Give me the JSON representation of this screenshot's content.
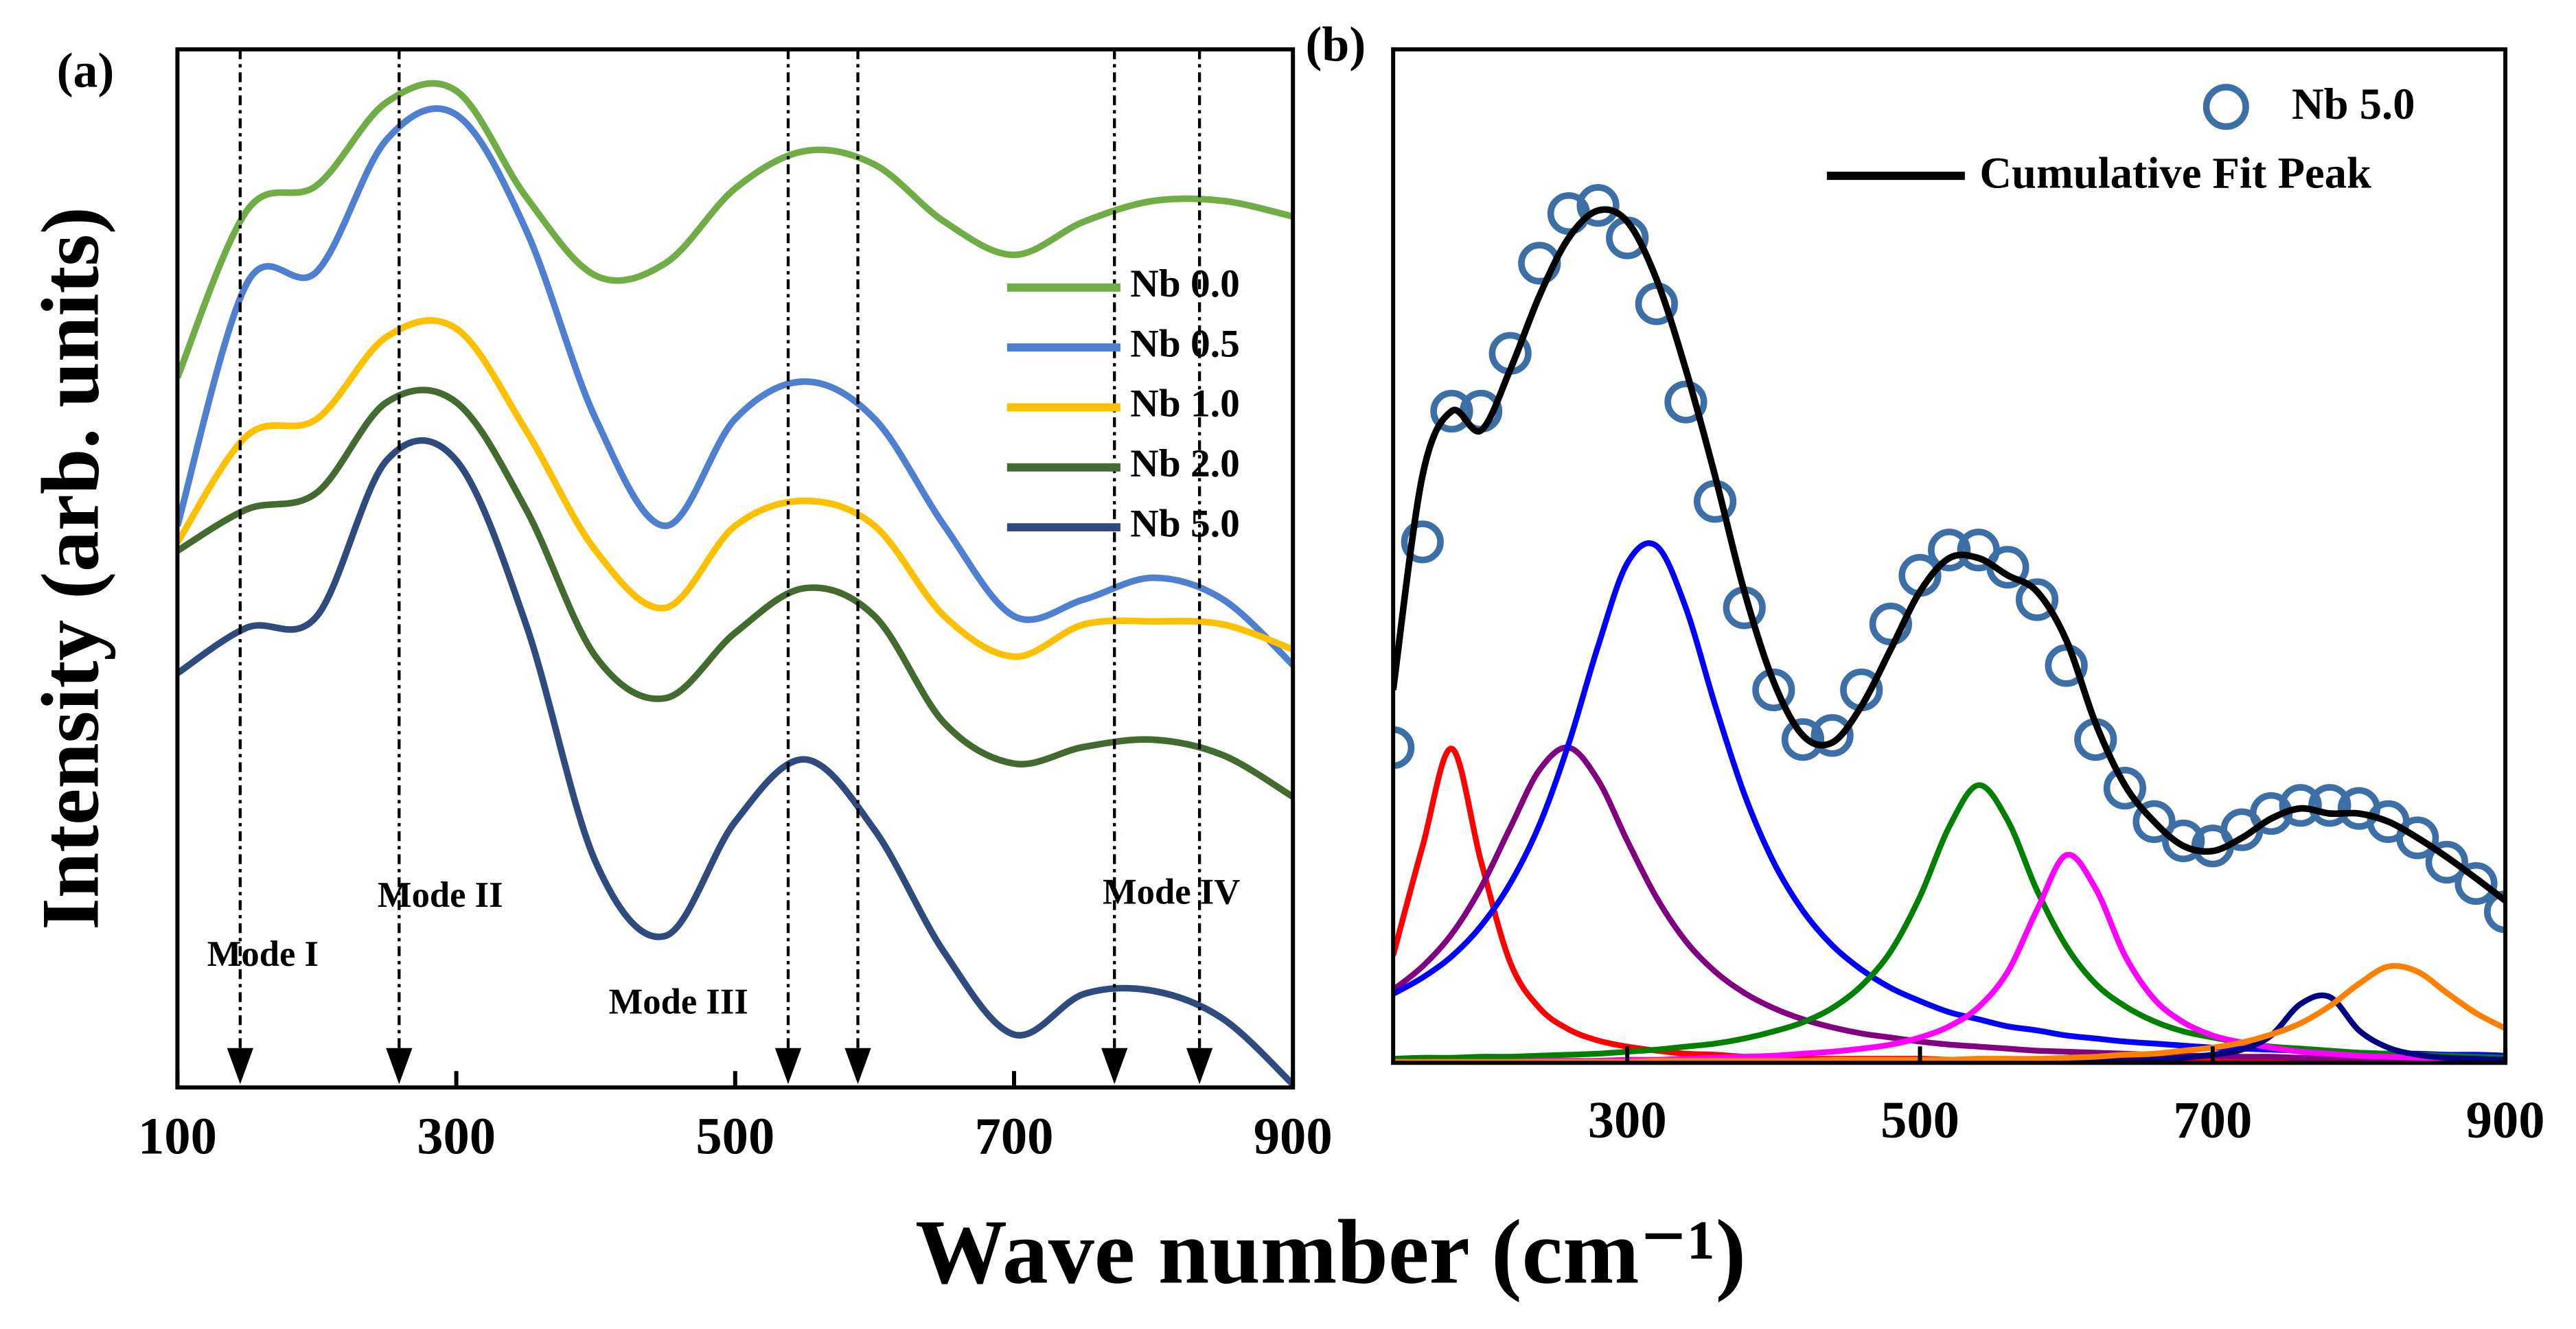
{
  "chart_data": [
    {
      "type": "line",
      "label": "(a)",
      "xlabel": "Wave number (cm⁻¹)",
      "ylabel": "Intensity (arb. units)",
      "x": [
        100,
        150,
        200,
        250,
        300,
        350,
        400,
        450,
        500,
        550,
        600,
        650,
        700,
        750,
        800,
        850,
        900
      ],
      "xlim": [
        100,
        900
      ],
      "xticks": [
        100,
        300,
        500,
        700,
        900
      ],
      "ylim": [
        0,
        100
      ],
      "legend": "right",
      "series": [
        {
          "name": "Nb 0.0",
          "color": "#70ad47",
          "values": [
            68.4,
            84.5,
            86.9,
            94.9,
            96.0,
            85.8,
            78.2,
            79.4,
            86.6,
            90.2,
            88.9,
            83.4,
            80.2,
            83.4,
            85.4,
            85.4,
            83.9
          ]
        },
        {
          "name": "Nb 0.5",
          "color": "#4f7fcf",
          "values": [
            54.1,
            77.5,
            78.6,
            91.3,
            93.7,
            82.6,
            64.4,
            54.1,
            64.4,
            68.0,
            64.4,
            54.1,
            45.4,
            47.0,
            49.1,
            47.0,
            40.7
          ]
        },
        {
          "name": "Nb 1.0",
          "color": "#ffc000",
          "values": [
            52.5,
            62.8,
            64.4,
            72.3,
            73.1,
            63.3,
            51.7,
            46.2,
            54.1,
            56.5,
            54.1,
            45.4,
            41.5,
            44.6,
            44.9,
            44.6,
            42.2
          ]
        },
        {
          "name": "Nb 2.0",
          "color": "#436b2f",
          "values": [
            51.7,
            55.7,
            57.3,
            66.0,
            66.0,
            55.7,
            41.5,
            37.5,
            43.8,
            48.1,
            45.4,
            35.1,
            31.2,
            32.8,
            33.5,
            32.0,
            28.0
          ]
        },
        {
          "name": "Nb 5.0",
          "color": "#2f4a7c",
          "values": [
            39.9,
            44.3,
            45.4,
            60.4,
            60.4,
            44.6,
            21.7,
            14.6,
            25.6,
            31.6,
            24.8,
            13.0,
            5.1,
            9.0,
            9.3,
            6.6,
            0.3
          ]
        }
      ],
      "markers": [
        145,
        259,
        538,
        588,
        772,
        833
      ],
      "annotations": [
        "Mode I",
        "Mode II",
        "Mode III",
        "Mode IV"
      ]
    },
    {
      "type": "scatter",
      "label": "(b)",
      "x": [
        140,
        160,
        180,
        200,
        220,
        240,
        260,
        280,
        300,
        320,
        340,
        360,
        380,
        400,
        420,
        440,
        460,
        480,
        500,
        520,
        540,
        560,
        580,
        600,
        620,
        640,
        660,
        680,
        700,
        720,
        740,
        760,
        780,
        800,
        820,
        840,
        860,
        880,
        900
      ],
      "xlim": [
        140,
        900
      ],
      "xticks": [
        300,
        500,
        700,
        900
      ],
      "ylim": [
        0,
        100
      ],
      "legend": "upper right",
      "series": [
        {
          "name": "Nb 5.0",
          "kind": "scatter",
          "color": "#3b6fa5",
          "values": [
            31.1,
            51.4,
            64.3,
            64.3,
            70.0,
            78.9,
            83.8,
            84.6,
            81.4,
            74.9,
            65.2,
            55.4,
            44.9,
            36.8,
            31.9,
            32.3,
            36.8,
            43.3,
            48.1,
            50.6,
            50.6,
            48.9,
            45.7,
            39.2,
            31.9,
            27.1,
            23.8,
            21.9,
            21.4,
            23.0,
            24.6,
            25.4,
            25.4,
            25.1,
            23.8,
            22.2,
            19.8,
            17.7,
            14.9
          ]
        },
        {
          "name": "Cumulative Fit Peak",
          "kind": "line",
          "color": "#000000",
          "values": [
            36.8,
            57.9,
            64.3,
            62.4,
            68.4,
            75.7,
            81.4,
            84.1,
            83.0,
            77.3,
            68.4,
            57.9,
            46.5,
            37.6,
            32.3,
            31.6,
            35.2,
            40.8,
            46.5,
            49.8,
            49.8,
            48.1,
            46.5,
            41.7,
            33.5,
            27.4,
            23.8,
            21.4,
            20.9,
            22.2,
            24.1,
            25.1,
            24.6,
            24.6,
            23.8,
            22.2,
            20.3,
            18.2,
            16.0
          ]
        },
        {
          "kind": "line",
          "color": "#ff0000",
          "values": [
            10.6,
            21.3,
            31.0,
            19.9,
            9.9,
            5.4,
            3.3,
            2.2,
            1.6,
            1.2,
            0.9,
            0.8,
            0.6,
            0.5,
            0.4,
            0.4,
            0.4,
            0.4,
            0.4,
            0.3,
            0.3,
            0.3,
            0.3,
            0.3,
            0.3,
            0.3,
            0.3,
            0.3,
            0.3,
            0.3,
            0.3,
            0.3,
            0.3,
            0.3,
            0.3,
            0.3,
            0.3,
            0.3,
            0.3
          ]
        },
        {
          "kind": "line",
          "color": "#800080",
          "values": [
            7.2,
            9.5,
            12.7,
            17.3,
            23.2,
            28.9,
            31.1,
            27.9,
            21.9,
            16.3,
            12.0,
            9.0,
            6.9,
            5.4,
            4.3,
            3.5,
            2.9,
            2.5,
            2.1,
            1.8,
            1.6,
            1.4,
            1.2,
            1.1,
            1.0,
            0.9,
            0.8,
            0.7,
            0.7,
            0.6,
            0.6,
            0.5,
            0.5,
            0.5,
            0.4,
            0.4,
            0.4,
            0.4,
            0.3
          ]
        },
        {
          "kind": "line",
          "color": "#0000ff",
          "values": [
            6.8,
            8.4,
            10.5,
            13.5,
            17.7,
            23.5,
            31.5,
            41.1,
            49.3,
            51.0,
            44.9,
            35.3,
            26.5,
            19.8,
            15.0,
            11.6,
            9.2,
            7.4,
            6.1,
            5.0,
            4.3,
            3.6,
            3.2,
            2.7,
            2.4,
            2.1,
            1.9,
            1.7,
            1.5,
            1.4,
            1.3,
            1.2,
            1.1,
            1.0,
            0.9,
            0.9,
            0.8,
            0.8,
            0.7
          ]
        },
        {
          "kind": "line",
          "color": "#008000",
          "values": [
            0.4,
            0.5,
            0.5,
            0.6,
            0.6,
            0.7,
            0.8,
            0.9,
            1.1,
            1.3,
            1.6,
            1.9,
            2.4,
            3.1,
            4.0,
            5.4,
            7.6,
            11.0,
            16.4,
            23.3,
            27.4,
            23.9,
            17.0,
            11.5,
            7.8,
            5.6,
            4.1,
            3.1,
            2.5,
            2.0,
            1.6,
            1.4,
            1.2,
            1.0,
            0.9,
            0.8,
            0.7,
            0.6,
            0.5
          ]
        },
        {
          "kind": "line",
          "color": "#ff00ff",
          "values": [
            0.1,
            0.1,
            0.1,
            0.1,
            0.1,
            0.2,
            0.2,
            0.2,
            0.3,
            0.3,
            0.4,
            0.5,
            0.6,
            0.7,
            0.9,
            1.1,
            1.4,
            1.8,
            2.5,
            3.6,
            5.5,
            9.0,
            15.1,
            20.5,
            17.2,
            10.6,
            6.3,
            4.0,
            2.7,
            2.0,
            1.5,
            1.1,
            0.9,
            0.7,
            0.6,
            0.5,
            0.4,
            0.4,
            0.3
          ]
        },
        {
          "kind": "line",
          "color": "#000080",
          "values": [
            0.1,
            0.1,
            0.1,
            0.1,
            0.1,
            0.1,
            0.1,
            0.1,
            0.1,
            0.1,
            0.1,
            0.1,
            0.1,
            0.1,
            0.1,
            0.1,
            0.1,
            0.1,
            0.1,
            0.1,
            0.1,
            0.1,
            0.1,
            0.1,
            0.2,
            0.2,
            0.3,
            0.5,
            0.8,
            1.3,
            2.7,
            5.8,
            6.5,
            3.2,
            1.5,
            0.8,
            0.5,
            0.4,
            0.3
          ]
        },
        {
          "kind": "line",
          "color": "#ff8000",
          "values": [
            0.1,
            0.1,
            0.1,
            0.1,
            0.1,
            0.1,
            0.1,
            0.1,
            0.1,
            0.2,
            0.2,
            0.2,
            0.2,
            0.2,
            0.2,
            0.3,
            0.3,
            0.3,
            0.3,
            0.3,
            0.4,
            0.4,
            0.4,
            0.5,
            0.6,
            0.8,
            0.9,
            1.2,
            1.5,
            2.0,
            2.8,
            3.9,
            5.6,
            7.8,
            9.5,
            9.0,
            6.9,
            4.9,
            3.4
          ]
        }
      ]
    }
  ]
}
